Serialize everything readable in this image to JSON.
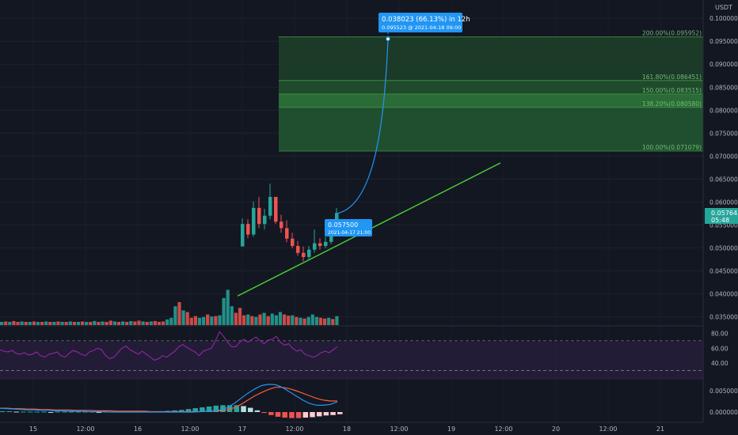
{
  "chart_data": {
    "type": "candlestick",
    "quote_currency": "USDT",
    "x_axis": {
      "tick_labels": [
        "15",
        "12:00",
        "16",
        "12:00",
        "17",
        "12:00",
        "18",
        "12:00",
        "19",
        "12:00",
        "20",
        "12:00",
        "21"
      ]
    },
    "price_axis": {
      "range": [
        0.033,
        0.104
      ],
      "tick_labels": [
        "0.100000",
        "0.095000",
        "0.090000",
        "0.085000",
        "0.080000",
        "0.075000",
        "0.070000",
        "0.065000",
        "0.060000",
        "0.055000",
        "0.050000",
        "0.045000",
        "0.040000",
        "0.035000"
      ],
      "tick_values": [
        0.1,
        0.095,
        0.09,
        0.085,
        0.08,
        0.075,
        0.07,
        0.065,
        0.06,
        0.055,
        0.05,
        0.045,
        0.04,
        0.035
      ],
      "last_price_label": "0.057643",
      "countdown_label": "05:48",
      "last_price": 0.057643
    },
    "candles": [
      [
        0.0503,
        0.0564,
        0.0503,
        0.0552
      ],
      [
        0.0552,
        0.0562,
        0.0521,
        0.0529
      ],
      [
        0.0529,
        0.0601,
        0.0524,
        0.0587
      ],
      [
        0.0587,
        0.0611,
        0.0543,
        0.0552
      ],
      [
        0.0552,
        0.0585,
        0.054,
        0.057
      ],
      [
        0.057,
        0.064,
        0.0562,
        0.0611
      ],
      [
        0.0611,
        0.0611,
        0.0552,
        0.0557
      ],
      [
        0.0557,
        0.0572,
        0.0533,
        0.0543
      ],
      [
        0.0543,
        0.056,
        0.0512,
        0.052
      ],
      [
        0.052,
        0.0533,
        0.0499,
        0.0504
      ],
      [
        0.0504,
        0.0515,
        0.0483,
        0.0489
      ],
      [
        0.0489,
        0.0503,
        0.047,
        0.048
      ],
      [
        0.048,
        0.0504,
        0.0475,
        0.0496
      ],
      [
        0.0496,
        0.054,
        0.0489,
        0.051
      ],
      [
        0.051,
        0.0521,
        0.0496,
        0.0504
      ],
      [
        0.0504,
        0.0524,
        0.0499,
        0.0513
      ],
      [
        0.0513,
        0.0545,
        0.0508,
        0.054
      ],
      [
        0.054,
        0.0587,
        0.0537,
        0.0576
      ]
    ],
    "projection": {
      "label": "0.038023 (66.13%) in 12h",
      "sublabel": "0.095523 @ 2021-04-18 09:00",
      "start_price": 0.0575,
      "target_price": 0.095523
    },
    "start_marker": {
      "label": "0.057500",
      "sublabel": "2021-04-17 21:00",
      "price": 0.0575
    },
    "trendline": {
      "from_price": 0.0395,
      "to_price": 0.0685
    },
    "fib_levels": [
      {
        "label": "200.00%(0.095952)",
        "price": 0.095952
      },
      {
        "label": "161.80%(0.086451)",
        "price": 0.086451
      },
      {
        "label": "150.00%(0.083515)",
        "price": 0.083515
      },
      {
        "label": "138.20%(0.080580)",
        "price": 0.08058
      },
      {
        "label": "100.00%(0.071079)",
        "price": 0.071079
      }
    ],
    "volume_bars": [
      [
        2,
        0
      ],
      [
        3,
        1
      ],
      [
        2,
        0
      ],
      [
        4,
        1
      ],
      [
        2,
        1
      ],
      [
        3,
        0
      ],
      [
        2,
        1
      ],
      [
        2,
        0
      ],
      [
        3,
        1
      ],
      [
        2,
        0
      ],
      [
        2,
        1
      ],
      [
        3,
        0
      ],
      [
        2,
        1
      ],
      [
        2,
        0
      ],
      [
        3,
        1
      ],
      [
        2,
        0
      ],
      [
        2,
        1
      ],
      [
        3,
        0
      ],
      [
        2,
        1
      ],
      [
        2,
        0
      ],
      [
        3,
        1
      ],
      [
        2,
        0
      ],
      [
        2,
        1
      ],
      [
        4,
        0
      ],
      [
        2,
        1
      ],
      [
        3,
        0
      ],
      [
        2,
        1
      ],
      [
        5,
        1
      ],
      [
        3,
        0
      ],
      [
        2,
        1
      ],
      [
        3,
        0
      ],
      [
        2,
        1
      ],
      [
        4,
        0
      ],
      [
        3,
        1
      ],
      [
        5,
        1
      ],
      [
        3,
        0
      ],
      [
        2,
        1
      ],
      [
        3,
        0
      ],
      [
        4,
        1
      ],
      [
        2,
        1
      ],
      [
        3,
        1
      ],
      [
        8,
        0
      ],
      [
        12,
        0
      ],
      [
        40,
        0
      ],
      [
        50,
        1
      ],
      [
        30,
        0
      ],
      [
        26,
        1
      ],
      [
        12,
        1
      ],
      [
        16,
        1
      ],
      [
        12,
        0
      ],
      [
        14,
        0
      ],
      [
        20,
        1
      ],
      [
        15,
        0
      ],
      [
        16,
        1
      ],
      [
        18,
        0
      ],
      [
        60,
        0
      ],
      [
        80,
        0
      ],
      [
        40,
        0
      ],
      [
        24,
        1
      ],
      [
        36,
        1
      ],
      [
        18,
        1
      ],
      [
        20,
        0
      ],
      [
        16,
        1
      ],
      [
        14,
        0
      ],
      [
        20,
        1
      ],
      [
        24,
        0
      ],
      [
        16,
        1
      ],
      [
        22,
        0
      ],
      [
        18,
        0
      ],
      [
        26,
        0
      ],
      [
        20,
        1
      ],
      [
        17,
        1
      ],
      [
        18,
        0
      ],
      [
        14,
        1
      ],
      [
        12,
        0
      ],
      [
        10,
        1
      ],
      [
        14,
        0
      ],
      [
        20,
        0
      ],
      [
        14,
        0
      ],
      [
        12,
        1
      ],
      [
        10,
        1
      ],
      [
        12,
        0
      ],
      [
        9,
        1
      ],
      [
        16,
        0
      ]
    ],
    "rsi": {
      "levels": [
        "80.00",
        "60.00",
        "40.00"
      ],
      "values": [
        58,
        56,
        55,
        57,
        53,
        52,
        54,
        51,
        52,
        55,
        50,
        48,
        52,
        53,
        55,
        50,
        48,
        53,
        57,
        55,
        52,
        50,
        55,
        57,
        60,
        58,
        50,
        46,
        48,
        54,
        60,
        63,
        58,
        55,
        52,
        56,
        52,
        48,
        44,
        46,
        50,
        48,
        52,
        56,
        62,
        65,
        61,
        58,
        55,
        50,
        56,
        58,
        60,
        70,
        82,
        76,
        68,
        62,
        62,
        68,
        72,
        68,
        72,
        75,
        70,
        66,
        71,
        72,
        76,
        68,
        64,
        66,
        60,
        56,
        58,
        52,
        50,
        48,
        50,
        54,
        56,
        54,
        58,
        62
      ]
    },
    "macd": {
      "tick_labels": [
        "0.005000",
        "0.000000"
      ],
      "macd_line": [
        0.0009,
        0.0008,
        0.0007,
        0.0006,
        0.0005,
        0.0005,
        0.0004,
        0.0004,
        0.0003,
        0.0003,
        0.0002,
        0.0002,
        0.0002,
        0.0001,
        0.0001,
        0.0001,
        0.0,
        0.0,
        0.0,
        0.0,
        0.0,
        0.0,
        0.0,
        0.0,
        0.0,
        0.0,
        0.0,
        0.0,
        0.0,
        0.0001,
        0.0002,
        0.0003,
        0.0005,
        0.001,
        0.002,
        0.0032,
        0.0044,
        0.0054,
        0.0062,
        0.0065,
        0.0064,
        0.0058,
        0.0048,
        0.0038,
        0.0028,
        0.002,
        0.0016,
        0.0016,
        0.0018,
        0.0024
      ],
      "signal_line": [
        0.0009,
        0.0009,
        0.0008,
        0.0008,
        0.0007,
        0.0007,
        0.0006,
        0.0006,
        0.0005,
        0.0005,
        0.0005,
        0.0004,
        0.0004,
        0.0004,
        0.0003,
        0.0003,
        0.0003,
        0.0002,
        0.0002,
        0.0002,
        0.0002,
        0.0002,
        0.0001,
        0.0001,
        0.0001,
        0.0001,
        0.0001,
        0.0001,
        0.0001,
        0.0001,
        0.0002,
        0.0002,
        0.0003,
        0.0005,
        0.001,
        0.0018,
        0.0028,
        0.0038,
        0.0046,
        0.0053,
        0.0058,
        0.0058,
        0.0055,
        0.005,
        0.0044,
        0.0038,
        0.0032,
        0.0028,
        0.0026,
        0.0026
      ],
      "histogram": [
        0.0002,
        0.0002,
        0.0001,
        0.0001,
        0.0001,
        0.0001,
        0.0001,
        0.0,
        0.0001,
        0.0001,
        0.0001,
        0.0001,
        0.0001,
        0.0001,
        0.0,
        0.0001,
        0.0001,
        0.0001,
        0.0001,
        0.0001,
        0.0001,
        0.0001,
        0.0002,
        0.0002,
        0.0003,
        0.0004,
        0.0005,
        0.0007,
        0.0009,
        0.0011,
        0.0013,
        0.0015,
        0.0016,
        0.0016,
        0.0016,
        0.0014,
        0.001,
        0.0004,
        -0.0002,
        -0.0007,
        -0.0011,
        -0.0013,
        -0.0014,
        -0.0014,
        -0.0013,
        -0.0012,
        -0.001,
        -0.0008,
        -0.0007,
        -0.0005
      ]
    }
  }
}
